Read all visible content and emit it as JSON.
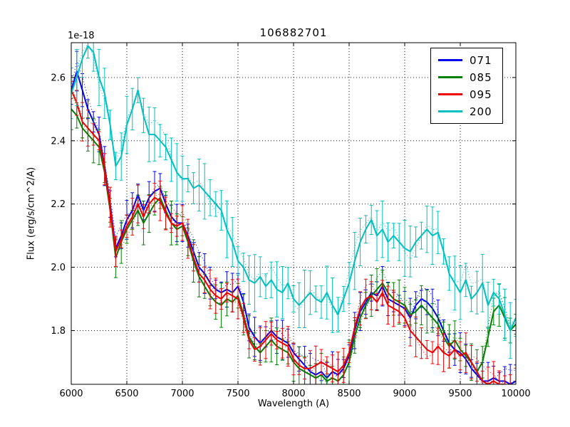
{
  "chart_data": {
    "type": "line",
    "title": "106882701",
    "xlabel": "Wavelength (A)",
    "ylabel": "Flux (erg/s/cm^2/A)",
    "y_offset_text": "1e-18",
    "xlim": [
      6000,
      10000
    ],
    "ylim": [
      1.63,
      2.71
    ],
    "xticks": [
      6000,
      6500,
      7000,
      7500,
      8000,
      8500,
      9000,
      9500,
      10000
    ],
    "yticks": [
      1.8,
      2.0,
      2.2,
      2.4,
      2.6
    ],
    "grid": true,
    "grid_style": "dotted",
    "legend_position": "upper right",
    "error_bars": true,
    "has_dotted_duplicates": true,
    "x_start": 6000,
    "x_step": 50,
    "series": [
      {
        "name": "071",
        "color": "#0000ee",
        "err": 0.045,
        "values": [
          2.56,
          2.62,
          2.56,
          2.5,
          2.46,
          2.42,
          2.32,
          2.2,
          2.06,
          2.1,
          2.15,
          2.18,
          2.23,
          2.18,
          2.22,
          2.24,
          2.25,
          2.2,
          2.16,
          2.14,
          2.14,
          2.1,
          2.05,
          2.0,
          1.98,
          1.95,
          1.93,
          1.92,
          1.93,
          1.92,
          1.94,
          1.89,
          1.81,
          1.78,
          1.76,
          1.78,
          1.8,
          1.78,
          1.77,
          1.76,
          1.73,
          1.71,
          1.69,
          1.67,
          1.66,
          1.67,
          1.65,
          1.67,
          1.66,
          1.68,
          1.72,
          1.8,
          1.86,
          1.89,
          1.92,
          1.91,
          1.94,
          1.9,
          1.89,
          1.88,
          1.87,
          1.84,
          1.88,
          1.9,
          1.89,
          1.87,
          1.84,
          1.8,
          1.76,
          1.74,
          1.73,
          1.71,
          1.68,
          1.66,
          1.64,
          1.64,
          1.65,
          1.64,
          1.64,
          1.63,
          1.64
        ]
      },
      {
        "name": "085",
        "color": "#008000",
        "err": 0.05,
        "values": [
          2.5,
          2.48,
          2.44,
          2.42,
          2.4,
          2.38,
          2.3,
          2.18,
          2.03,
          2.08,
          2.12,
          2.15,
          2.18,
          2.14,
          2.17,
          2.2,
          2.22,
          2.18,
          2.14,
          2.12,
          2.13,
          2.08,
          2.02,
          1.97,
          1.94,
          1.91,
          1.89,
          1.88,
          1.9,
          1.89,
          1.91,
          1.85,
          1.78,
          1.75,
          1.73,
          1.75,
          1.77,
          1.75,
          1.74,
          1.73,
          1.7,
          1.68,
          1.67,
          1.66,
          1.65,
          1.66,
          1.64,
          1.65,
          1.64,
          1.66,
          1.7,
          1.78,
          1.84,
          1.88,
          1.91,
          1.93,
          1.95,
          1.92,
          1.9,
          1.89,
          1.88,
          1.85,
          1.86,
          1.88,
          1.86,
          1.84,
          1.82,
          1.78,
          1.75,
          1.77,
          1.74,
          1.72,
          1.7,
          1.67,
          1.7,
          1.78,
          1.86,
          1.88,
          1.84,
          1.8,
          1.82
        ]
      },
      {
        "name": "095",
        "color": "#ee0000",
        "err": 0.045,
        "values": [
          2.56,
          2.52,
          2.46,
          2.44,
          2.42,
          2.4,
          2.31,
          2.19,
          2.05,
          2.09,
          2.13,
          2.16,
          2.2,
          2.16,
          2.2,
          2.22,
          2.21,
          2.17,
          2.14,
          2.13,
          2.14,
          2.09,
          2.03,
          1.98,
          1.96,
          1.93,
          1.91,
          1.9,
          1.92,
          1.91,
          1.9,
          1.84,
          1.77,
          1.74,
          1.75,
          1.77,
          1.79,
          1.77,
          1.76,
          1.75,
          1.71,
          1.69,
          1.68,
          1.68,
          1.69,
          1.7,
          1.69,
          1.68,
          1.67,
          1.69,
          1.73,
          1.81,
          1.87,
          1.9,
          1.91,
          1.89,
          1.92,
          1.88,
          1.87,
          1.86,
          1.84,
          1.8,
          1.78,
          1.76,
          1.74,
          1.73,
          1.75,
          1.73,
          1.72,
          1.74,
          1.72,
          1.73,
          1.7,
          1.67,
          1.64,
          1.63,
          1.64,
          1.63,
          1.63,
          1.62,
          1.62
        ]
      },
      {
        "name": "200",
        "color": "#00bfbf",
        "err": 0.065,
        "values": [
          2.55,
          2.6,
          2.66,
          2.7,
          2.68,
          2.6,
          2.55,
          2.45,
          2.32,
          2.35,
          2.45,
          2.5,
          2.56,
          2.48,
          2.42,
          2.42,
          2.4,
          2.38,
          2.34,
          2.3,
          2.28,
          2.28,
          2.25,
          2.26,
          2.24,
          2.22,
          2.2,
          2.18,
          2.12,
          2.08,
          2.02,
          2.0,
          1.96,
          1.95,
          1.97,
          1.94,
          1.96,
          1.93,
          1.92,
          1.95,
          1.9,
          1.88,
          1.9,
          1.92,
          1.9,
          1.89,
          1.92,
          1.88,
          1.85,
          1.9,
          1.95,
          2.02,
          2.08,
          2.12,
          2.15,
          2.1,
          2.12,
          2.08,
          2.1,
          2.08,
          2.06,
          2.05,
          2.08,
          2.1,
          2.12,
          2.1,
          2.11,
          2.05,
          1.98,
          1.95,
          1.92,
          1.96,
          1.9,
          1.92,
          1.95,
          1.88,
          1.92,
          1.9,
          1.85,
          1.8,
          1.84
        ]
      }
    ]
  }
}
